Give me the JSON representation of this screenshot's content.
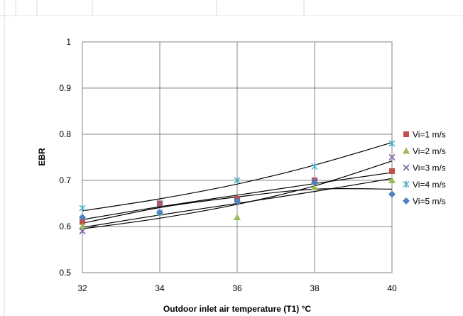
{
  "chart_data": {
    "type": "scatter",
    "title": "",
    "xlabel": "Outdoor inlet air temperature (T1) °C",
    "ylabel": "EBR",
    "xlim": [
      32,
      40
    ],
    "ylim": [
      0.5,
      1
    ],
    "xticks": [
      32,
      34,
      36,
      38,
      40
    ],
    "yticks": [
      0.5,
      0.6,
      0.7,
      0.8,
      0.9,
      1
    ],
    "xtick_labels": [
      "32",
      "34",
      "36",
      "38",
      "40"
    ],
    "ytick_labels": [
      "0.5",
      "0.6",
      "0.7",
      "0.8",
      "0.9",
      "1"
    ],
    "grid": true,
    "legend_position": "right",
    "x": [
      32,
      34,
      36,
      38,
      40
    ],
    "series": [
      {
        "name": "Vi=1 m/s",
        "marker": "square",
        "color": "#c0504d",
        "values": [
          0.61,
          0.65,
          0.66,
          0.7,
          0.72
        ],
        "trend": [
          0.615,
          0.643,
          0.668,
          0.693,
          0.717
        ]
      },
      {
        "name": "Vi=2 m/s",
        "marker": "triangle",
        "color": "#9bbb59",
        "values": [
          0.6,
          0.63,
          0.62,
          0.685,
          0.7
        ],
        "trend": [
          0.598,
          0.625,
          0.65,
          0.676,
          0.704
        ]
      },
      {
        "name": "Vi=3 m/s",
        "marker": "x",
        "color": "#8064a2",
        "values": [
          0.59,
          0.65,
          0.655,
          0.7,
          0.75
        ],
        "trend": [
          0.595,
          0.618,
          0.648,
          0.688,
          0.742
        ]
      },
      {
        "name": "Vi=4 m/s",
        "marker": "asterisk",
        "color": "#4bacc6",
        "values": [
          0.64,
          0.63,
          0.7,
          0.73,
          0.78
        ],
        "trend": [
          0.634,
          0.66,
          0.692,
          0.733,
          0.782
        ]
      },
      {
        "name": "Vi=5 m/s",
        "marker": "diamond",
        "color": "#4f81bd",
        "values": [
          0.62,
          0.63,
          0.655,
          0.695,
          0.67
        ],
        "trend": [
          0.607,
          0.641,
          0.664,
          0.681,
          0.681
        ]
      }
    ]
  }
}
